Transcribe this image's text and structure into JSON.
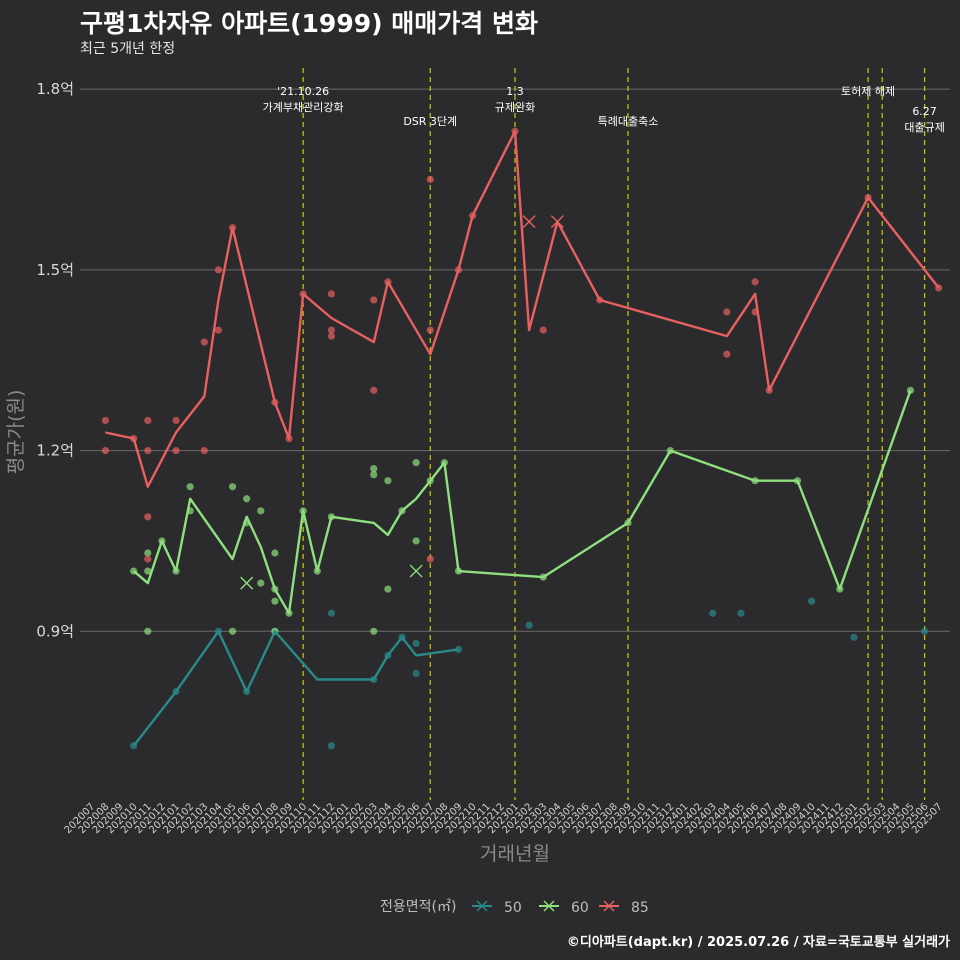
{
  "header": {
    "title": "구평1차자유 아파트(1999) 매매가격 변화",
    "subtitle": "최근 5개년 한정"
  },
  "caption": "©디아파트(dapt.kr) / 2025.07.26 / 자료=국토교통부 실거래가",
  "colors": {
    "background": "#2b2b2d",
    "grid": "#6a6a6a",
    "event_line": "#cccc00",
    "series_50": "#2a8a8a",
    "series_60": "#8ee07e",
    "series_85": "#e86060"
  },
  "chart_data": {
    "type": "line",
    "title": "구평1차자유 아파트(1999) 매매가격 변화",
    "subtitle": "최근 5개년 한정",
    "xlabel": "거래년월",
    "ylabel": "평균가(원)",
    "ylim": [
      0.62,
      1.84
    ],
    "yticks": [
      {
        "value": 0.9,
        "label": "0.9억"
      },
      {
        "value": 1.2,
        "label": "1.2억"
      },
      {
        "value": 1.5,
        "label": "1.5억"
      },
      {
        "value": 1.8,
        "label": "1.8억"
      }
    ],
    "x_categories": [
      "202007",
      "202008",
      "202009",
      "202010",
      "202011",
      "202012",
      "202101",
      "202102",
      "202103",
      "202104",
      "202105",
      "202106",
      "202107",
      "202108",
      "202109",
      "202110",
      "202111",
      "202112",
      "202201",
      "202202",
      "202203",
      "202204",
      "202205",
      "202206",
      "202207",
      "202208",
      "202209",
      "202210",
      "202211",
      "202212",
      "202301",
      "202302",
      "202303",
      "202304",
      "202305",
      "202306",
      "202307",
      "202308",
      "202309",
      "202310",
      "202311",
      "202312",
      "202401",
      "202402",
      "202403",
      "202404",
      "202405",
      "202406",
      "202407",
      "202408",
      "202409",
      "202410",
      "202411",
      "202412",
      "202501",
      "202502",
      "202503",
      "202504",
      "202505",
      "202506",
      "202507"
    ],
    "events": [
      {
        "x": "202110",
        "lines": [
          "'21.10.26",
          "가계부채관리강화"
        ],
        "row": 0
      },
      {
        "x": "202207",
        "lines": [
          "DSR 3단계"
        ],
        "row": 1
      },
      {
        "x": "202301",
        "lines": [
          "1.3",
          "규제완화"
        ],
        "row": 0
      },
      {
        "x": "202309",
        "lines": [
          "특례대출축소"
        ],
        "row": 1
      },
      {
        "x": "202502",
        "lines": [
          "토허제 해제"
        ],
        "row": 0
      },
      {
        "x": "202503",
        "lines": [],
        "row": 0
      },
      {
        "x": "202506",
        "lines": [
          "6.27",
          "대출규제"
        ],
        "row": 2
      }
    ],
    "legend": {
      "title": "전용면적(㎡)",
      "position": "bottom"
    },
    "series": [
      {
        "name": "50",
        "color": "#2a8a8a",
        "line": [
          [
            "202010",
            0.71
          ],
          [
            "202101",
            0.8
          ],
          [
            "202104",
            0.9
          ],
          [
            "202106",
            0.8
          ],
          [
            "202108",
            0.9
          ],
          [
            "202111",
            0.82
          ],
          [
            "202203",
            0.82
          ],
          [
            "202204",
            0.86
          ],
          [
            "202205",
            0.89
          ],
          [
            "202206",
            0.86
          ],
          [
            "202209",
            0.87
          ]
        ],
        "points": [
          [
            "202010",
            0.71
          ],
          [
            "202101",
            0.8
          ],
          [
            "202104",
            0.9
          ],
          [
            "202106",
            0.8
          ],
          [
            "202108",
            0.9
          ],
          [
            "202112",
            0.93
          ],
          [
            "202112",
            0.71
          ],
          [
            "202203",
            0.82
          ],
          [
            "202204",
            0.86
          ],
          [
            "202205",
            0.89
          ],
          [
            "202206",
            0.83
          ],
          [
            "202206",
            0.88
          ],
          [
            "202209",
            0.87
          ],
          [
            "202302",
            0.91
          ],
          [
            "202403",
            0.93
          ],
          [
            "202405",
            0.93
          ],
          [
            "202410",
            0.95
          ],
          [
            "202501",
            0.89
          ],
          [
            "202506",
            0.9
          ]
        ],
        "cancelled": []
      },
      {
        "name": "60",
        "color": "#8ee07e",
        "line": [
          [
            "202010",
            1.0
          ],
          [
            "202011",
            0.98
          ],
          [
            "202012",
            1.05
          ],
          [
            "202101",
            1.0
          ],
          [
            "202102",
            1.12
          ],
          [
            "202105",
            1.02
          ],
          [
            "202106",
            1.09
          ],
          [
            "202107",
            1.04
          ],
          [
            "202108",
            0.97
          ],
          [
            "202109",
            0.93
          ],
          [
            "202110",
            1.1
          ],
          [
            "202111",
            1.0
          ],
          [
            "202112",
            1.09
          ],
          [
            "202203",
            1.08
          ],
          [
            "202204",
            1.06
          ],
          [
            "202205",
            1.1
          ],
          [
            "202206",
            1.12
          ],
          [
            "202207",
            1.15
          ],
          [
            "202208",
            1.18
          ],
          [
            "202209",
            1.0
          ],
          [
            "202303",
            0.99
          ],
          [
            "202309",
            1.08
          ],
          [
            "202312",
            1.2
          ],
          [
            "202406",
            1.15
          ],
          [
            "202409",
            1.15
          ],
          [
            "202412",
            0.97
          ],
          [
            "202505",
            1.3
          ]
        ],
        "points": [
          [
            "202010",
            1.0
          ],
          [
            "202011",
            1.03
          ],
          [
            "202011",
            1.0
          ],
          [
            "202011",
            0.9
          ],
          [
            "202012",
            1.05
          ],
          [
            "202101",
            1.0
          ],
          [
            "202102",
            1.14
          ],
          [
            "202102",
            1.1
          ],
          [
            "202105",
            1.14
          ],
          [
            "202105",
            0.9
          ],
          [
            "202106",
            1.12
          ],
          [
            "202106",
            1.08
          ],
          [
            "202107",
            1.1
          ],
          [
            "202107",
            0.98
          ],
          [
            "202108",
            1.03
          ],
          [
            "202108",
            0.95
          ],
          [
            "202108",
            0.9
          ],
          [
            "202108",
            0.97
          ],
          [
            "202109",
            0.93
          ],
          [
            "202110",
            1.1
          ],
          [
            "202111",
            1.0
          ],
          [
            "202112",
            1.09
          ],
          [
            "202203",
            1.17
          ],
          [
            "202203",
            1.16
          ],
          [
            "202203",
            0.9
          ],
          [
            "202204",
            1.15
          ],
          [
            "202204",
            0.97
          ],
          [
            "202205",
            1.1
          ],
          [
            "202206",
            1.18
          ],
          [
            "202206",
            1.05
          ],
          [
            "202207",
            1.15
          ],
          [
            "202208",
            1.18
          ],
          [
            "202209",
            1.0
          ],
          [
            "202303",
            0.99
          ],
          [
            "202309",
            1.08
          ],
          [
            "202312",
            1.2
          ],
          [
            "202406",
            1.15
          ],
          [
            "202409",
            1.15
          ],
          [
            "202412",
            0.97
          ],
          [
            "202505",
            1.3
          ]
        ],
        "cancelled": [
          [
            "202106",
            0.98
          ],
          [
            "202206",
            1.0
          ]
        ]
      },
      {
        "name": "85",
        "color": "#e86060",
        "line": [
          [
            "202008",
            1.23
          ],
          [
            "202010",
            1.22
          ],
          [
            "202011",
            1.14
          ],
          [
            "202101",
            1.23
          ],
          [
            "202103",
            1.29
          ],
          [
            "202104",
            1.45
          ],
          [
            "202105",
            1.57
          ],
          [
            "202108",
            1.28
          ],
          [
            "202109",
            1.22
          ],
          [
            "202110",
            1.46
          ],
          [
            "202112",
            1.42
          ],
          [
            "202203",
            1.38
          ],
          [
            "202204",
            1.48
          ],
          [
            "202207",
            1.36
          ],
          [
            "202209",
            1.5
          ],
          [
            "202210",
            1.59
          ],
          [
            "202301",
            1.73
          ],
          [
            "202302",
            1.4
          ],
          [
            "202304",
            1.58
          ],
          [
            "202307",
            1.45
          ],
          [
            "202404",
            1.39
          ],
          [
            "202406",
            1.46
          ],
          [
            "202407",
            1.3
          ],
          [
            "202502",
            1.62
          ],
          [
            "202507",
            1.47
          ]
        ],
        "points": [
          [
            "202008",
            1.25
          ],
          [
            "202008",
            1.2
          ],
          [
            "202010",
            1.22
          ],
          [
            "202011",
            1.25
          ],
          [
            "202011",
            1.2
          ],
          [
            "202011",
            1.09
          ],
          [
            "202011",
            1.02
          ],
          [
            "202101",
            1.25
          ],
          [
            "202101",
            1.2
          ],
          [
            "202103",
            1.38
          ],
          [
            "202103",
            1.2
          ],
          [
            "202104",
            1.5
          ],
          [
            "202104",
            1.4
          ],
          [
            "202105",
            1.57
          ],
          [
            "202108",
            1.28
          ],
          [
            "202109",
            1.22
          ],
          [
            "202110",
            1.46
          ],
          [
            "202112",
            1.46
          ],
          [
            "202112",
            1.4
          ],
          [
            "202112",
            1.39
          ],
          [
            "202203",
            1.45
          ],
          [
            "202203",
            1.3
          ],
          [
            "202204",
            1.48
          ],
          [
            "202207",
            1.65
          ],
          [
            "202207",
            1.4
          ],
          [
            "202207",
            1.02
          ],
          [
            "202209",
            1.5
          ],
          [
            "202210",
            1.59
          ],
          [
            "202301",
            1.73
          ],
          [
            "202303",
            1.4
          ],
          [
            "202307",
            1.45
          ],
          [
            "202404",
            1.43
          ],
          [
            "202404",
            1.36
          ],
          [
            "202406",
            1.48
          ],
          [
            "202406",
            1.43
          ],
          [
            "202407",
            1.3
          ],
          [
            "202502",
            1.62
          ],
          [
            "202507",
            1.47
          ]
        ],
        "cancelled": [
          [
            "202302",
            1.58
          ],
          [
            "202304",
            1.58
          ]
        ]
      }
    ]
  }
}
